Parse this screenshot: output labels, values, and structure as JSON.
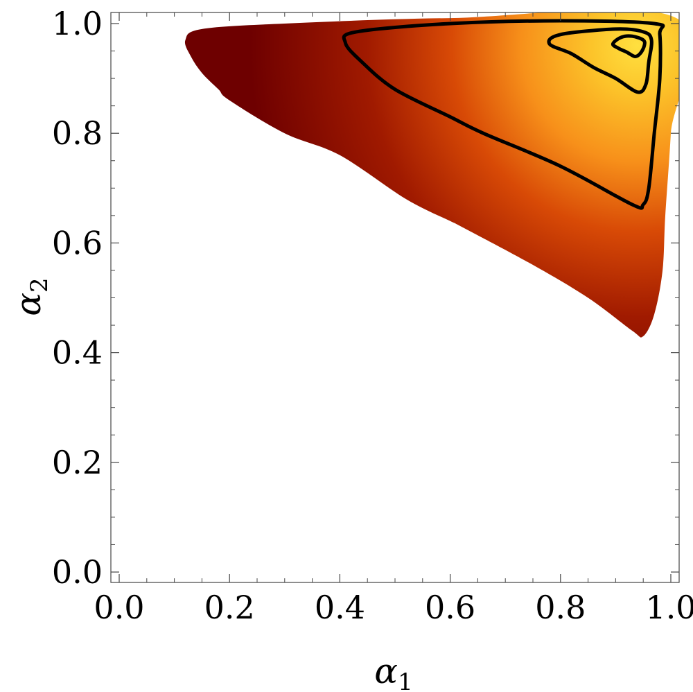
{
  "chart_data": {
    "type": "heatmap",
    "title": "",
    "xlabel": {
      "symbol": "α",
      "subscript": "1"
    },
    "ylabel": {
      "symbol": "α",
      "subscript": "2"
    },
    "xlim": [
      0.0,
      1.0
    ],
    "ylim": [
      0.0,
      1.0
    ],
    "x_ticks": [
      "0.0",
      "0.2",
      "0.4",
      "0.6",
      "0.8",
      "1.0"
    ],
    "y_ticks": [
      "0.0",
      "0.2",
      "0.4",
      "0.6",
      "0.8",
      "1.0"
    ],
    "x_tick_values": [
      0.0,
      0.2,
      0.4,
      0.6,
      0.8,
      1.0
    ],
    "y_tick_values": [
      0.0,
      0.2,
      0.4,
      0.6,
      0.8,
      1.0
    ],
    "grid": false,
    "colormap": [
      "#6e0000",
      "#a01a00",
      "#d84a06",
      "#f7901a",
      "#fcc42a",
      "#ffe040"
    ],
    "peak": {
      "x": 0.94,
      "y": 0.96
    },
    "support_region": [
      [
        0.12,
        0.97
      ],
      [
        0.15,
        0.99
      ],
      [
        0.3,
        1.0
      ],
      [
        0.6,
        1.01
      ],
      [
        1.01,
        1.01
      ],
      [
        1.0,
        0.8
      ],
      [
        0.99,
        0.65
      ],
      [
        0.985,
        0.55
      ],
      [
        0.97,
        0.47
      ],
      [
        0.95,
        0.43
      ],
      [
        0.93,
        0.44
      ],
      [
        0.85,
        0.5
      ],
      [
        0.75,
        0.56
      ],
      [
        0.62,
        0.63
      ],
      [
        0.6,
        0.64
      ],
      [
        0.52,
        0.68
      ],
      [
        0.4,
        0.76
      ],
      [
        0.3,
        0.8
      ],
      [
        0.2,
        0.86
      ],
      [
        0.18,
        0.88
      ],
      [
        0.15,
        0.91
      ],
      [
        0.13,
        0.94
      ]
    ],
    "contours": [
      {
        "level": 1,
        "points": [
          [
            0.41,
            0.965
          ],
          [
            0.43,
            0.985
          ],
          [
            0.6,
            1.0
          ],
          [
            0.8,
            1.005
          ],
          [
            0.97,
            1.0
          ],
          [
            0.98,
            0.98
          ],
          [
            0.98,
            0.9
          ],
          [
            0.97,
            0.8
          ],
          [
            0.96,
            0.7
          ],
          [
            0.95,
            0.67
          ],
          [
            0.93,
            0.67
          ],
          [
            0.8,
            0.74
          ],
          [
            0.66,
            0.8
          ],
          [
            0.6,
            0.83
          ],
          [
            0.5,
            0.88
          ],
          [
            0.44,
            0.93
          ]
        ]
      },
      {
        "level": 2,
        "points": [
          [
            0.78,
            0.963
          ],
          [
            0.8,
            0.98
          ],
          [
            0.9,
            0.99
          ],
          [
            0.95,
            0.985
          ],
          [
            0.965,
            0.97
          ],
          [
            0.96,
            0.93
          ],
          [
            0.955,
            0.89
          ],
          [
            0.94,
            0.875
          ],
          [
            0.9,
            0.9
          ],
          [
            0.86,
            0.92
          ],
          [
            0.82,
            0.945
          ]
        ]
      },
      {
        "level": 3,
        "points": [
          [
            0.895,
            0.963
          ],
          [
            0.91,
            0.975
          ],
          [
            0.93,
            0.977
          ],
          [
            0.95,
            0.97
          ],
          [
            0.952,
            0.96
          ],
          [
            0.945,
            0.946
          ],
          [
            0.935,
            0.94
          ],
          [
            0.92,
            0.948
          ],
          [
            0.905,
            0.955
          ]
        ]
      }
    ]
  }
}
